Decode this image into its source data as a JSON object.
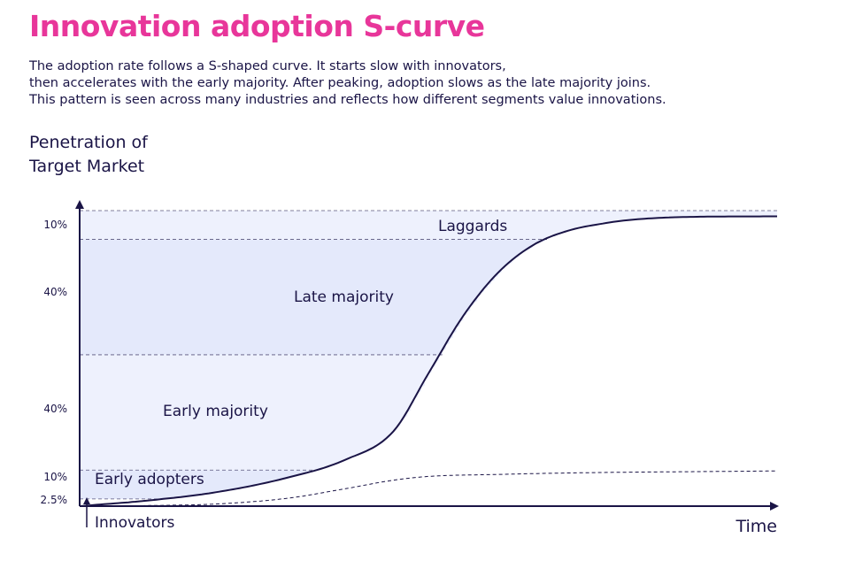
{
  "title": "Innovation adoption S-curve",
  "description": [
    "The adoption rate follows a S-shaped curve. It starts slow with innovators,",
    "then accelerates with the early majority. After peaking, adoption slows as the late majority joins.",
    "This pattern is seen across many industries and reflects how different segments value innovations."
  ],
  "colors": {
    "title": "#e8369a",
    "text": "#1a1446",
    "band_fill": "#eef1fd",
    "band_fill_dark": "#e4e9fb",
    "dash": "#1a1446"
  },
  "chart_data": {
    "type": "area",
    "ylabel": [
      "Penetration of",
      "Target Market"
    ],
    "xlabel": "Time",
    "ylim": [
      0,
      102.5
    ],
    "xlim": [
      0,
      100
    ],
    "segments": [
      {
        "name": "Innovators",
        "share": "2.5%",
        "bottom": 0,
        "top": 2.5
      },
      {
        "name": "Early adopters",
        "share": "10%",
        "bottom": 2.5,
        "top": 12.5
      },
      {
        "name": "Early majority",
        "share": "40%",
        "bottom": 12.5,
        "top": 52.5
      },
      {
        "name": "Late majority",
        "share": "40%",
        "bottom": 52.5,
        "top": 92.5
      },
      {
        "name": "Laggards",
        "share": "10%",
        "bottom": 92.5,
        "top": 102.5
      }
    ],
    "s_curve": {
      "x": [
        0,
        10,
        20,
        30,
        38,
        45,
        50,
        55,
        60,
        65,
        70,
        75,
        80,
        90,
        100
      ],
      "y": [
        0,
        2,
        5,
        10,
        16,
        26,
        46,
        66,
        81,
        90.5,
        95.5,
        98,
        99.5,
        100.4,
        100.5
      ]
    },
    "adoption_rate_curve": {
      "x": [
        0,
        10,
        20,
        30,
        38,
        45,
        50,
        60,
        70,
        80,
        90,
        100
      ],
      "y": [
        0,
        0.2,
        0.8,
        2.8,
        6,
        9,
        10.3,
        11,
        11.5,
        11.8,
        12,
        12.2
      ]
    }
  }
}
